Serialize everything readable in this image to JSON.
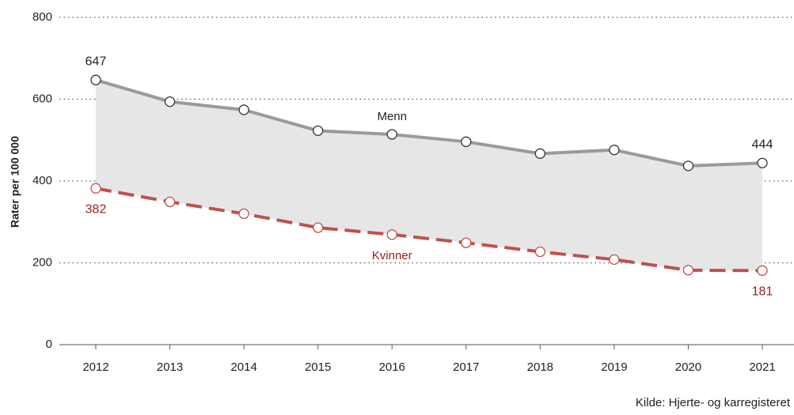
{
  "chart_data": {
    "type": "line",
    "y_label": "Rater per 100 000",
    "source": "Kilde: Hjerte- og karregisteret",
    "categories": [
      "2012",
      "2013",
      "2014",
      "2015",
      "2016",
      "2017",
      "2018",
      "2019",
      "2020",
      "2021"
    ],
    "series": [
      {
        "name": "Menn",
        "color": "#9a9a9a",
        "label_color": "#222222",
        "dashed": false,
        "values": [
          647,
          594,
          574,
          523,
          514,
          496,
          467,
          476,
          437,
          444
        ]
      },
      {
        "name": "Kvinner",
        "color": "#c0504d",
        "label_color": "#9b1c1c",
        "dashed": true,
        "values": [
          382,
          349,
          320,
          286,
          269,
          249,
          227,
          208,
          182,
          181
        ]
      }
    ],
    "ylim": [
      0,
      800
    ],
    "yticks": [
      0,
      200,
      400,
      600,
      800
    ],
    "grid": true,
    "area_between": true,
    "area_color": "#e6e6e6"
  }
}
